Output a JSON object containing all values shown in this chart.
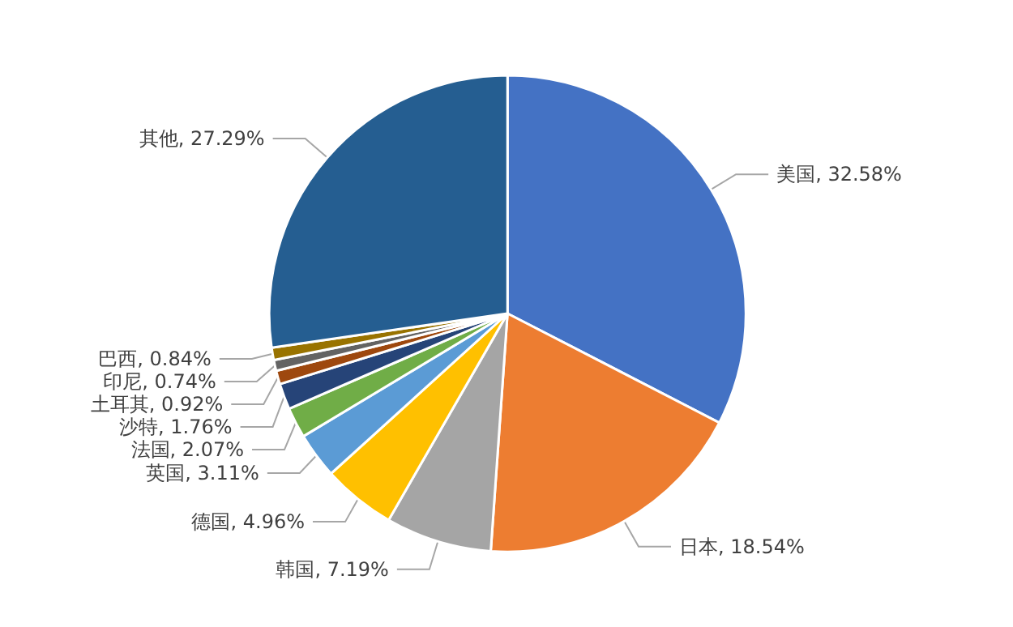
{
  "chart_data": {
    "type": "pie",
    "categories": [
      "美国",
      "日本",
      "韩国",
      "德国",
      "英国",
      "法国",
      "沙特",
      "土耳其",
      "印尼",
      "巴西",
      "其他"
    ],
    "values": [
      32.58,
      18.54,
      7.19,
      4.96,
      3.11,
      2.07,
      1.76,
      0.92,
      0.74,
      0.84,
      27.29
    ],
    "value_labels": [
      "32.58%",
      "18.54%",
      "7.19%",
      "4.96%",
      "3.11%",
      "2.07%",
      "1.76%",
      "0.92%",
      "0.74%",
      "0.84%",
      "27.29%"
    ],
    "colors": [
      "#4472c4",
      "#ed7d31",
      "#a5a5a5",
      "#ffc000",
      "#5b9bd5",
      "#70ad47",
      "#264478",
      "#9e480e",
      "#636363",
      "#997300",
      "#255e91"
    ],
    "legend": false
  }
}
